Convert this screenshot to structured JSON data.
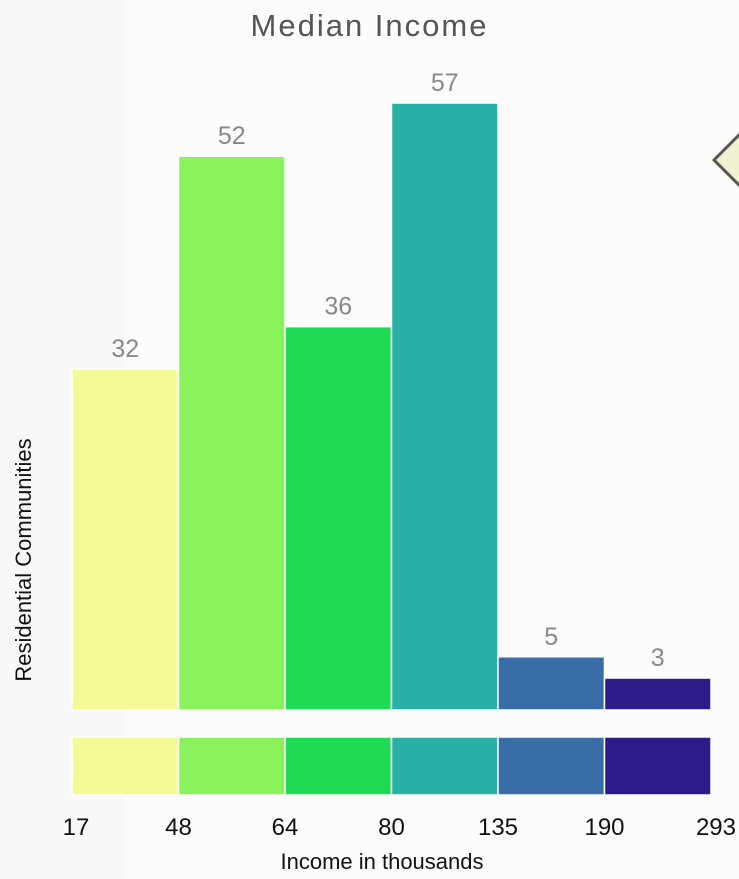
{
  "chart_data": {
    "type": "bar",
    "title": "Median Income",
    "xlabel": "Income in thousands",
    "ylabel": "Residential Communities",
    "bin_edges": [
      "17",
      "48",
      "64",
      "80",
      "135",
      "190",
      "293"
    ],
    "categories": [
      "17-48",
      "48-64",
      "64-80",
      "80-135",
      "135-190",
      "190-293"
    ],
    "values": [
      32,
      52,
      36,
      57,
      5,
      3
    ],
    "colors": [
      "#f4fb96",
      "#89f25a",
      "#1fdb56",
      "#2ab1a5",
      "#386da8",
      "#2d1c87"
    ],
    "ylim": [
      0,
      57
    ],
    "grid": false,
    "legend": "color strip below bars"
  }
}
